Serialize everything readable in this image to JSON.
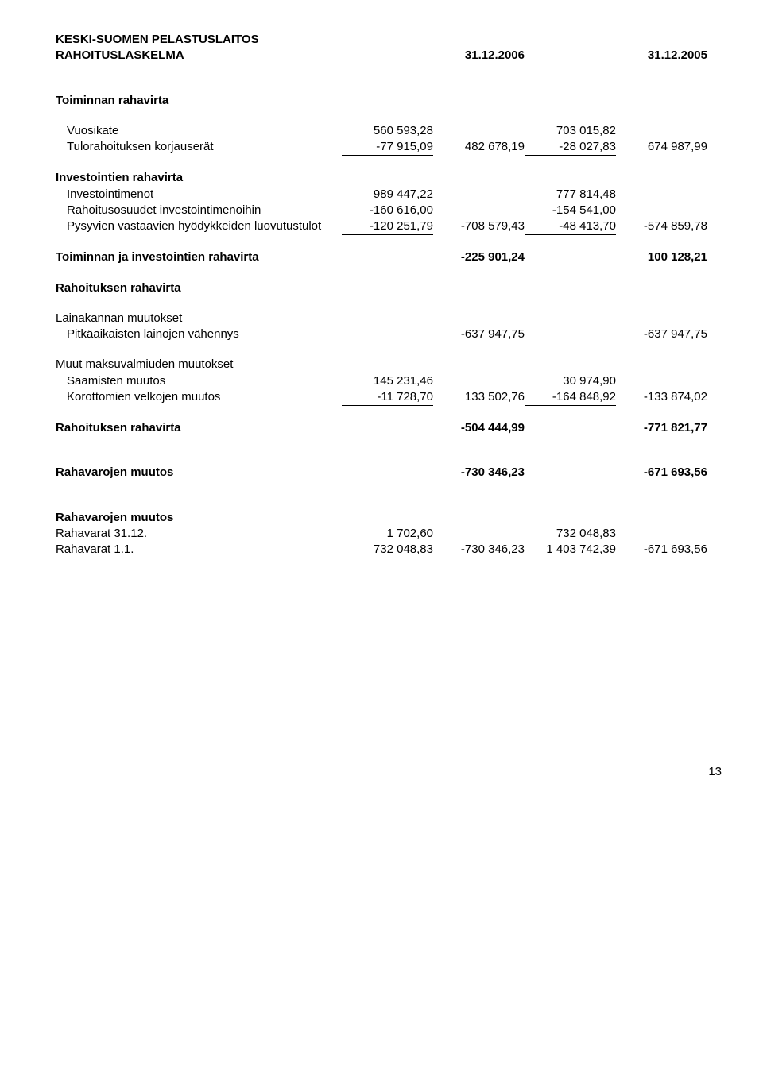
{
  "header": {
    "org": "KESKI-SUOMEN PELASTUSLAITOS",
    "title": "RAHOITUSLASKELMA",
    "date1": "31.12.2006",
    "date2": "31.12.2005"
  },
  "s1": {
    "heading": "Toiminnan rahavirta",
    "rows": [
      {
        "label": "Vuosikate",
        "c1": "560 593,28",
        "c2": "",
        "c3": "703 015,82",
        "c4": "",
        "u1": false,
        "u3": false
      },
      {
        "label": "Tulorahoituksen korjauserät",
        "c1": "-77 915,09",
        "c2": "482 678,19",
        "c3": "-28 027,83",
        "c4": "674 987,99",
        "u1": true,
        "u3": true
      }
    ]
  },
  "s2": {
    "heading": "Investointien rahavirta",
    "rows": [
      {
        "label": "Investointimenot",
        "c1": "989 447,22",
        "c2": "",
        "c3": "777 814,48",
        "c4": "",
        "u1": false,
        "u3": false
      },
      {
        "label": "Rahoitusosuudet investointimenoihin",
        "c1": "-160 616,00",
        "c2": "",
        "c3": "-154 541,00",
        "c4": "",
        "u1": false,
        "u3": false
      },
      {
        "label": "Pysyvien vastaavien hyödykkeiden luovutustulot",
        "c1": "-120 251,79",
        "c2": "-708 579,43",
        "c3": "-48 413,70",
        "c4": "-574 859,78",
        "u1": true,
        "u3": true
      }
    ]
  },
  "sub1": {
    "label": "Toiminnan ja investointien rahavirta",
    "c2": "-225 901,24",
    "c4": "100 128,21"
  },
  "s3": {
    "heading": "Rahoituksen rahavirta"
  },
  "s4": {
    "heading": "Lainakannan muutokset",
    "rows": [
      {
        "label": "Pitkäaikaisten lainojen vähennys",
        "c1": "",
        "c2": "-637 947,75",
        "c3": "",
        "c4": "-637 947,75",
        "u1": false,
        "u3": false
      }
    ]
  },
  "s5": {
    "heading": "Muut maksuvalmiuden muutokset",
    "rows": [
      {
        "label": "Saamisten muutos",
        "c1": "145 231,46",
        "c2": "",
        "c3": "30 974,90",
        "c4": "",
        "u1": false,
        "u3": false
      },
      {
        "label": "Korottomien velkojen muutos",
        "c1": "-11 728,70",
        "c2": "133 502,76",
        "c3": "-164 848,92",
        "c4": "-133 874,02",
        "u1": true,
        "u3": true
      }
    ]
  },
  "sub2": {
    "label": "Rahoituksen rahavirta",
    "c2": "-504 444,99",
    "c4": "-771 821,77"
  },
  "sub3": {
    "label": "Rahavarojen muutos",
    "c2": "-730 346,23",
    "c4": "-671 693,56"
  },
  "s6": {
    "heading": "Rahavarojen muutos",
    "rows": [
      {
        "label": "Rahavarat  31.12.",
        "c1": "1 702,60",
        "c2": "",
        "c3": "732 048,83",
        "c4": "",
        "u1": false,
        "u3": false
      },
      {
        "label": "Rahavarat 1.1.",
        "c1": "732 048,83",
        "c2": "-730 346,23",
        "c3": "1 403 742,39",
        "c4": "-671 693,56",
        "u1": true,
        "u3": true
      }
    ]
  },
  "page": "13"
}
